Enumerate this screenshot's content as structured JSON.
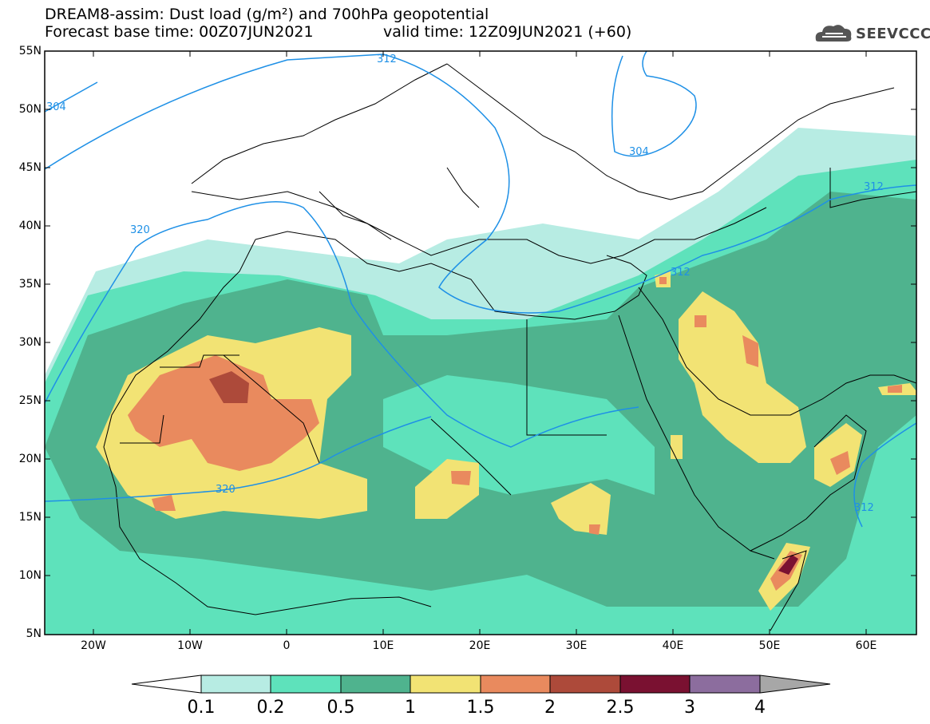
{
  "header": {
    "title_line1": "DREAM8-assim: Dust load (g/m²) and 700hPa geopotential",
    "title_line2": "Forecast base time: 00Z07JUN2021",
    "title_line2b": "valid time: 12Z09JUN2021 (+60)",
    "logo_text": "SEEVCCC",
    "logo_icon": "cloud-icon"
  },
  "map": {
    "lat_labels": [
      "55N",
      "50N",
      "45N",
      "40N",
      "35N",
      "30N",
      "25N",
      "20N",
      "15N",
      "10N",
      "5N"
    ],
    "lon_labels": [
      "20W",
      "10W",
      "0",
      "10E",
      "20E",
      "30E",
      "40E",
      "50E",
      "60E"
    ],
    "contour_labels": [
      "304",
      "312",
      "320",
      "304",
      "312",
      "312",
      "320",
      "312"
    ],
    "colors": {
      "ocean": "#ffffff",
      "border": "#000000",
      "contour": "#1e90e6"
    }
  },
  "colorbar": {
    "labels": [
      "0.1",
      "0.2",
      "0.5",
      "1",
      "1.5",
      "2",
      "2.5",
      "3",
      "4"
    ],
    "colors": [
      "#b7ece3",
      "#5ee2bb",
      "#4fb38e",
      "#f2e374",
      "#e98a5e",
      "#ad4a3a",
      "#7a1131",
      "#8c6d9e"
    ],
    "under_color": "#ffffff",
    "over_color": "#a7a7a7"
  }
}
